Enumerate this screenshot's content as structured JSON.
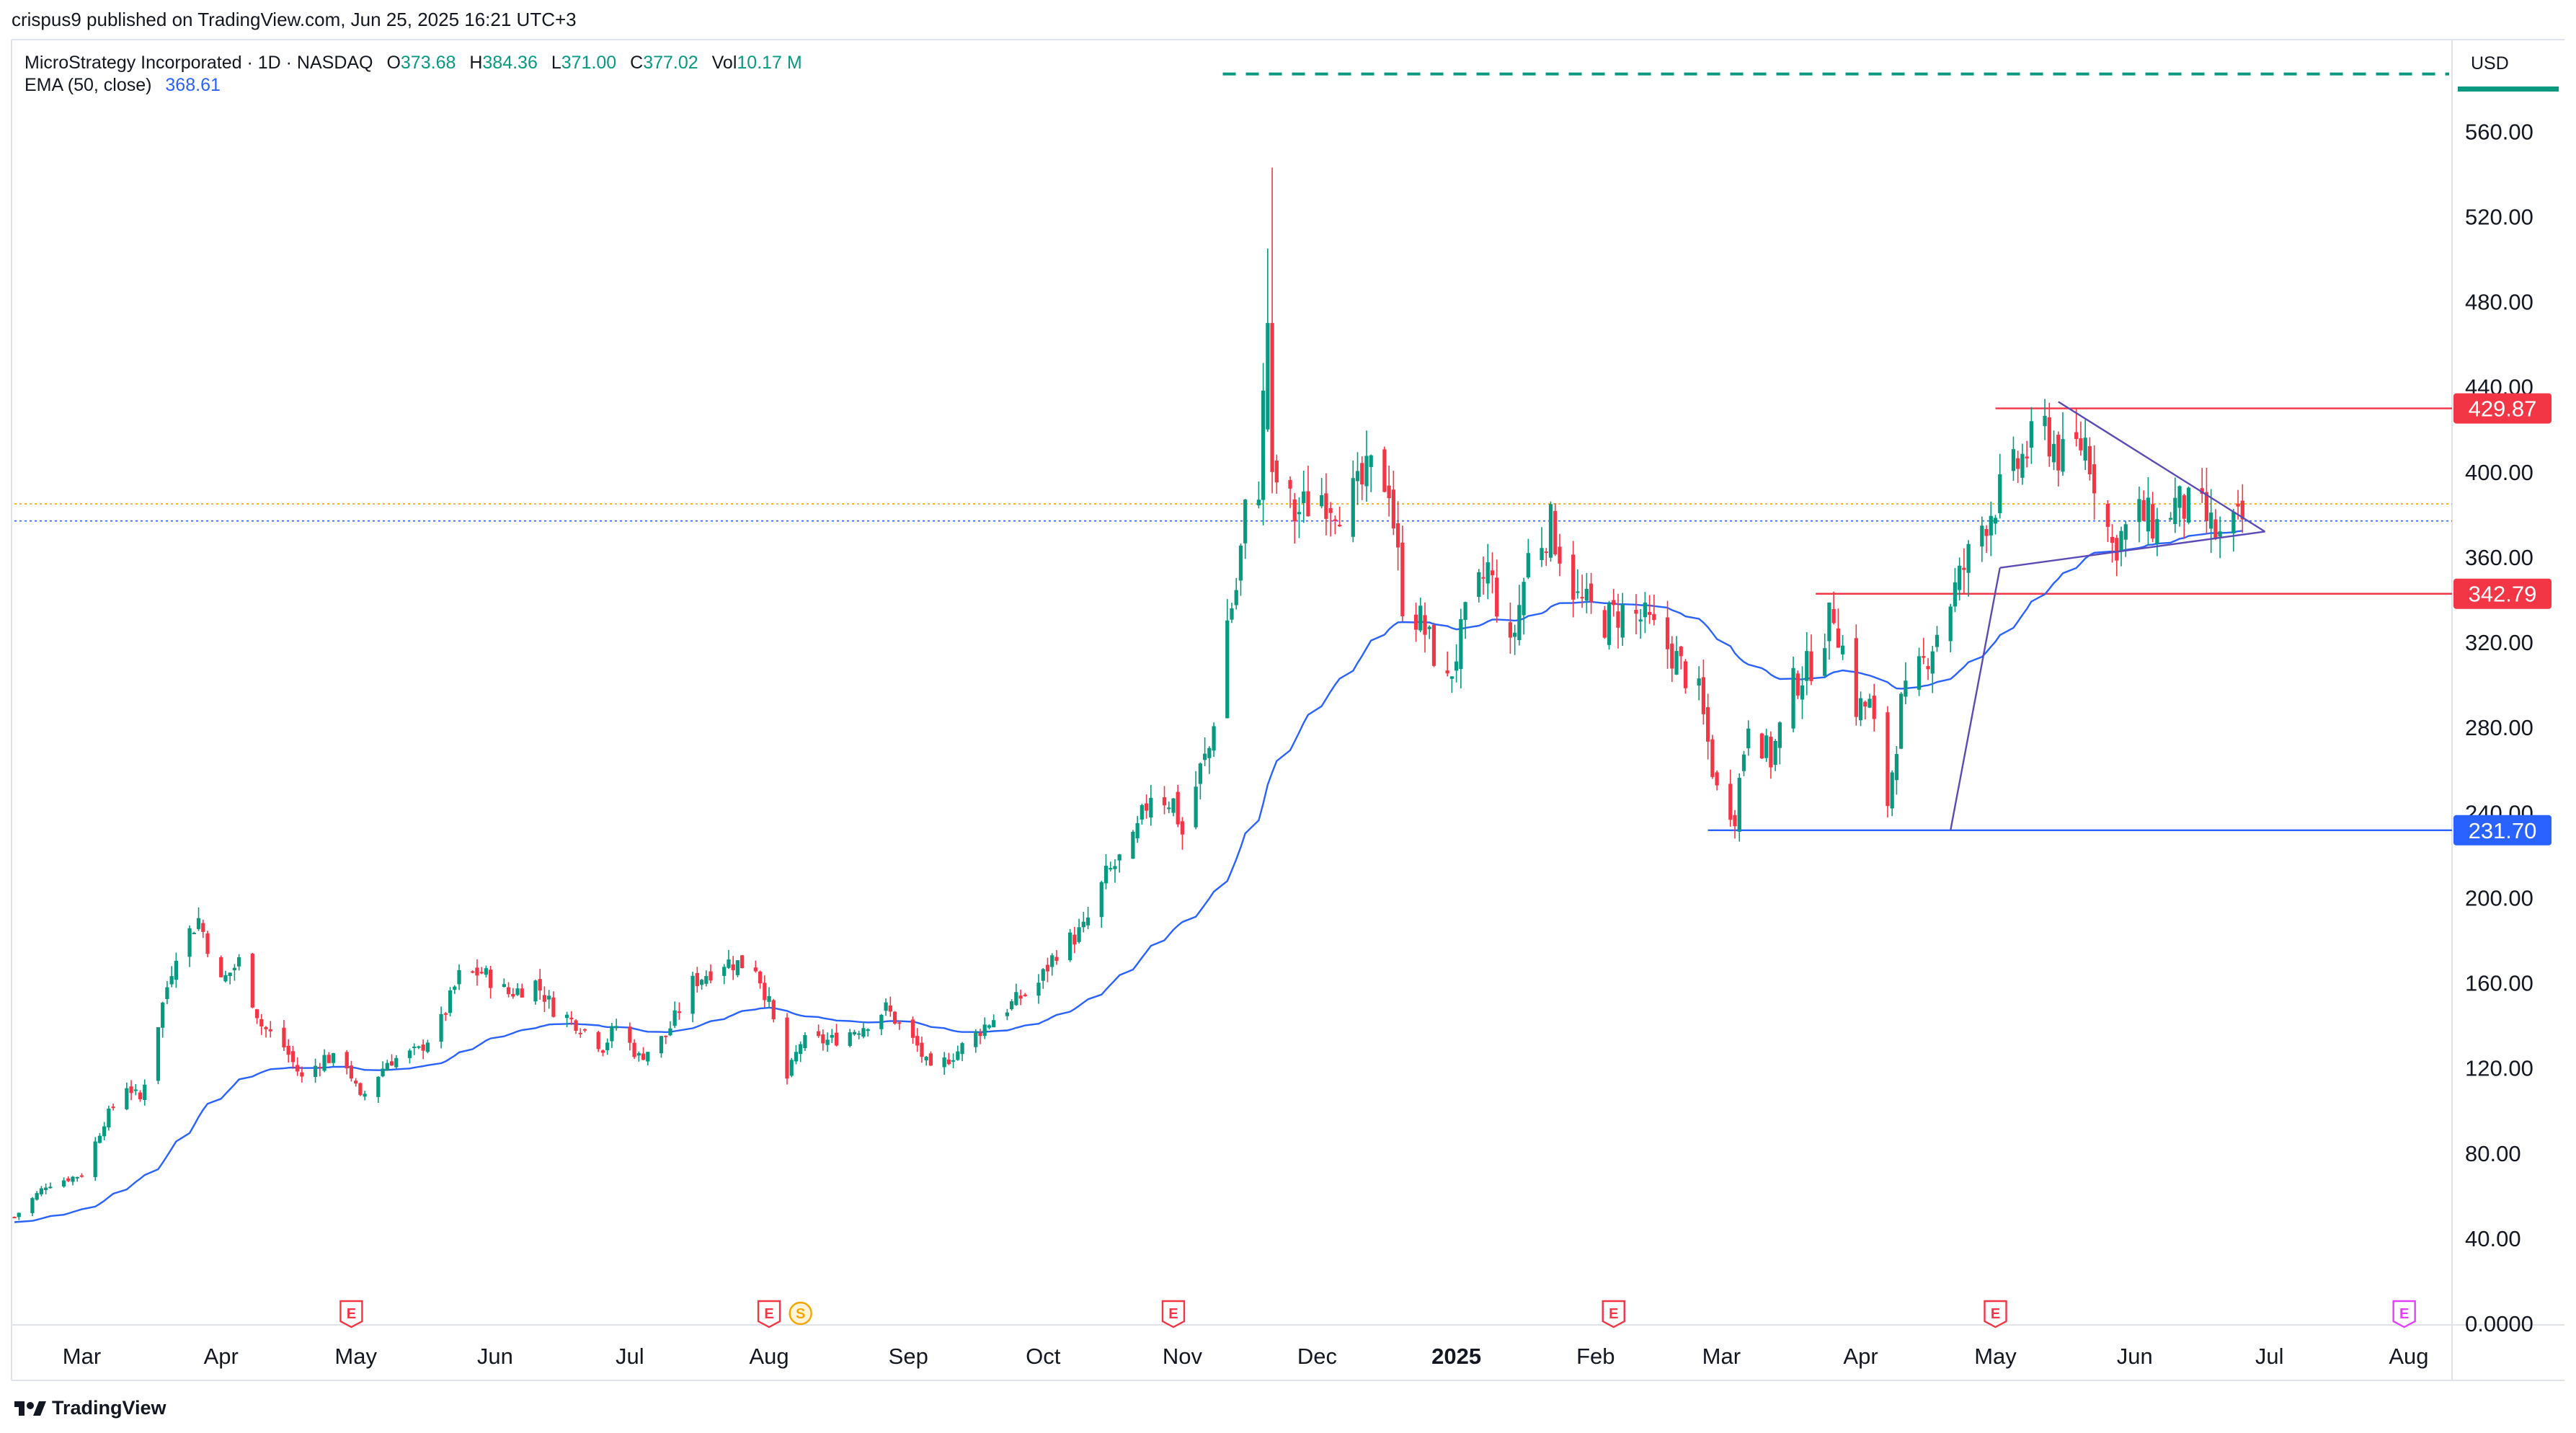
{
  "header": {
    "published": "crispus9 published on TradingView.com, Jun 25, 2025 16:21 UTC+3"
  },
  "legend": {
    "symbol": "MicroStrategy Incorporated · 1D · NASDAQ",
    "o_label": "O",
    "o_value": "373.68",
    "h_label": "H",
    "h_value": "384.36",
    "l_label": "L",
    "l_value": "371.00",
    "c_label": "C",
    "c_value": "377.02",
    "vol_label": "Vol",
    "vol_value": "10.17 M",
    "ema_label": "EMA (50, close)",
    "ema_value": "368.61"
  },
  "currency": "USD",
  "footer": {
    "brand": "TradingView"
  },
  "colors": {
    "up": "#089981",
    "down": "#f23645",
    "ema": "#2962ff",
    "resistance": "#f23645",
    "support": "#2962ff",
    "triangle": "#5b4bb7",
    "dashed_top": "#089981",
    "price_line": "#2962ff",
    "orange_line": "#f7a600",
    "earnings": "#f23645",
    "split": "#f7a600",
    "future_event": "#e040fb"
  },
  "chart_data": {
    "type": "candlestick",
    "title": "MicroStrategy Incorporated · 1D · NASDAQ",
    "ylim": [
      0,
      600
    ],
    "y_ticks": [
      "560.00",
      "520.00",
      "480.00",
      "440.00",
      "400.00",
      "360.00",
      "320.00",
      "280.00",
      "240.00",
      "200.00",
      "160.00",
      "120.00",
      "80.00",
      "40.00",
      "0.0000"
    ],
    "y_tick_values": [
      560,
      520,
      480,
      440,
      400,
      360,
      320,
      280,
      240,
      200,
      160,
      120,
      80,
      40,
      0
    ],
    "x_start": "2024-02-15",
    "x_end": "2025-08-10",
    "month_labels": [
      {
        "label": "Mar",
        "date": "2024-03-01",
        "bold": false
      },
      {
        "label": "Apr",
        "date": "2024-04-01",
        "bold": false
      },
      {
        "label": "May",
        "date": "2024-05-01",
        "bold": false
      },
      {
        "label": "Jun",
        "date": "2024-06-01",
        "bold": false
      },
      {
        "label": "Jul",
        "date": "2024-07-01",
        "bold": false
      },
      {
        "label": "Aug",
        "date": "2024-08-01",
        "bold": false
      },
      {
        "label": "Sep",
        "date": "2024-09-01",
        "bold": false
      },
      {
        "label": "Oct",
        "date": "2024-10-01",
        "bold": false
      },
      {
        "label": "Nov",
        "date": "2024-11-01",
        "bold": false
      },
      {
        "label": "Dec",
        "date": "2024-12-01",
        "bold": false
      },
      {
        "label": "2025",
        "date": "2025-01-01",
        "bold": true
      },
      {
        "label": "Feb",
        "date": "2025-02-01",
        "bold": false
      },
      {
        "label": "Mar",
        "date": "2025-03-01",
        "bold": false
      },
      {
        "label": "Apr",
        "date": "2025-04-01",
        "bold": false
      },
      {
        "label": "May",
        "date": "2025-05-01",
        "bold": false
      },
      {
        "label": "Jun",
        "date": "2025-06-01",
        "bold": false
      },
      {
        "label": "Jul",
        "date": "2025-07-01",
        "bold": false
      },
      {
        "label": "Aug",
        "date": "2025-08-01",
        "bold": false
      }
    ],
    "price_anchors": [
      [
        "2024-02-15",
        50
      ],
      [
        "2024-02-22",
        65
      ],
      [
        "2024-03-01",
        70
      ],
      [
        "2024-03-06",
        95
      ],
      [
        "2024-03-11",
        112
      ],
      [
        "2024-03-14",
        105
      ],
      [
        "2024-03-19",
        150
      ],
      [
        "2024-03-22",
        175
      ],
      [
        "2024-03-27",
        190
      ],
      [
        "2024-04-01",
        160
      ],
      [
        "2024-04-05",
        170
      ],
      [
        "2024-04-10",
        140
      ],
      [
        "2024-04-15",
        130
      ],
      [
        "2024-04-19",
        115
      ],
      [
        "2024-04-24",
        125
      ],
      [
        "2024-04-29",
        122
      ],
      [
        "2024-05-02",
        105
      ],
      [
        "2024-05-08",
        123
      ],
      [
        "2024-05-15",
        128
      ],
      [
        "2024-05-20",
        142
      ],
      [
        "2024-05-24",
        163
      ],
      [
        "2024-05-29",
        165
      ],
      [
        "2024-06-04",
        155
      ],
      [
        "2024-06-10",
        160
      ],
      [
        "2024-06-14",
        148
      ],
      [
        "2024-06-20",
        140
      ],
      [
        "2024-06-25",
        130
      ],
      [
        "2024-06-28",
        140
      ],
      [
        "2024-07-03",
        125
      ],
      [
        "2024-07-09",
        135
      ],
      [
        "2024-07-15",
        160
      ],
      [
        "2024-07-22",
        170
      ],
      [
        "2024-07-29",
        168
      ],
      [
        "2024-08-01",
        150
      ],
      [
        "2024-08-05",
        115
      ],
      [
        "2024-08-08",
        132
      ],
      [
        "2024-08-15",
        133
      ],
      [
        "2024-08-22",
        140
      ],
      [
        "2024-08-27",
        148
      ],
      [
        "2024-09-03",
        130
      ],
      [
        "2024-09-06",
        118
      ],
      [
        "2024-09-12",
        128
      ],
      [
        "2024-09-18",
        140
      ],
      [
        "2024-09-24",
        150
      ],
      [
        "2024-09-30",
        160
      ],
      [
        "2024-10-04",
        175
      ],
      [
        "2024-10-10",
        185
      ],
      [
        "2024-10-15",
        210
      ],
      [
        "2024-10-21",
        225
      ],
      [
        "2024-10-25",
        250
      ],
      [
        "2024-10-30",
        245
      ],
      [
        "2024-11-01",
        230
      ],
      [
        "2024-11-05",
        260
      ],
      [
        "2024-11-07",
        270
      ],
      [
        "2024-11-11",
        330
      ],
      [
        "2024-11-13",
        345
      ],
      [
        "2024-11-15",
        380
      ],
      [
        "2024-11-18",
        395
      ],
      [
        "2024-11-20",
        470
      ],
      [
        "2024-11-21",
        400
      ],
      [
        "2024-11-26",
        380
      ],
      [
        "2024-12-02",
        390
      ],
      [
        "2024-12-06",
        385
      ],
      [
        "2024-12-10",
        390
      ],
      [
        "2024-12-13",
        400
      ],
      [
        "2024-12-17",
        395
      ],
      [
        "2024-12-20",
        340
      ],
      [
        "2024-12-24",
        330
      ],
      [
        "2024-12-30",
        300
      ],
      [
        "2025-01-03",
        330
      ],
      [
        "2025-01-08",
        355
      ],
      [
        "2025-01-13",
        315
      ],
      [
        "2025-01-17",
        360
      ],
      [
        "2025-01-22",
        375
      ],
      [
        "2025-01-28",
        340
      ],
      [
        "2025-02-03",
        330
      ],
      [
        "2025-02-07",
        335
      ],
      [
        "2025-02-12",
        330
      ],
      [
        "2025-02-18",
        315
      ],
      [
        "2025-02-24",
        295
      ],
      [
        "2025-02-28",
        250
      ],
      [
        "2025-03-04",
        240
      ],
      [
        "2025-03-07",
        285
      ],
      [
        "2025-03-12",
        265
      ],
      [
        "2025-03-17",
        300
      ],
      [
        "2025-03-21",
        310
      ],
      [
        "2025-03-26",
        335
      ],
      [
        "2025-03-31",
        290
      ],
      [
        "2025-04-03",
        290
      ],
      [
        "2025-04-07",
        245
      ],
      [
        "2025-04-10",
        290
      ],
      [
        "2025-04-15",
        310
      ],
      [
        "2025-04-22",
        345
      ],
      [
        "2025-04-28",
        375
      ],
      [
        "2025-05-02",
        390
      ],
      [
        "2025-05-08",
        410
      ],
      [
        "2025-05-12",
        420
      ],
      [
        "2025-05-16",
        405
      ],
      [
        "2025-05-21",
        415
      ],
      [
        "2025-05-27",
        365
      ],
      [
        "2025-06-02",
        380
      ],
      [
        "2025-06-06",
        375
      ],
      [
        "2025-06-10",
        385
      ],
      [
        "2025-06-16",
        380
      ],
      [
        "2025-06-20",
        368
      ],
      [
        "2025-06-25",
        377
      ]
    ],
    "earnings_markers": [
      {
        "label": "E",
        "date": "2024-04-30",
        "kind": "earnings"
      },
      {
        "label": "E",
        "date": "2024-08-01",
        "kind": "earnings"
      },
      {
        "label": "S",
        "date": "2024-08-08",
        "kind": "split"
      },
      {
        "label": "E",
        "date": "2024-10-30",
        "kind": "earnings"
      },
      {
        "label": "E",
        "date": "2025-02-05",
        "kind": "earnings"
      },
      {
        "label": "E",
        "date": "2025-05-01",
        "kind": "earnings"
      },
      {
        "label": "E",
        "date": "2025-07-31",
        "kind": "future"
      }
    ],
    "price_labels": [
      {
        "text": "429.87",
        "value": 429.87,
        "color": "#f23645"
      },
      {
        "text": "342.79",
        "value": 342.79,
        "color": "#f23645"
      },
      {
        "text": "231.70",
        "value": 231.7,
        "color": "#2962ff"
      }
    ],
    "horizontal_levels": {
      "resistance_high": {
        "value": 429.87,
        "from": "2025-05-01"
      },
      "resistance_mid": {
        "value": 342.79,
        "from": "2025-03-22"
      },
      "support_low": {
        "value": 231.7,
        "from": "2025-02-26"
      },
      "dashed_top": {
        "value": 587,
        "from": "2024-11-10"
      },
      "last_price": {
        "value": 377.02
      },
      "prev_close": {
        "value": 385
      }
    },
    "trendlines": [
      {
        "from": [
          "2025-04-21",
          231.7
        ],
        "to": [
          "2025-05-02",
          355
        ]
      },
      {
        "from": [
          "2025-05-02",
          355
        ],
        "to": [
          "2025-06-30",
          372
        ]
      },
      {
        "from": [
          "2025-05-15",
          433
        ],
        "to": [
          "2025-06-30",
          372
        ]
      }
    ]
  }
}
